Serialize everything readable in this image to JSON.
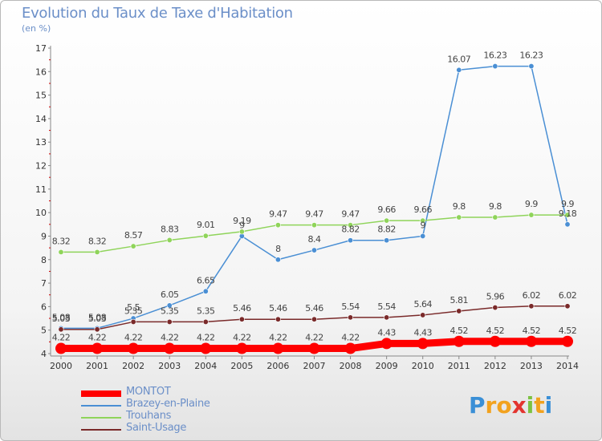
{
  "title": "Evolution du Taux de Taxe d'Habitation",
  "subtitle": "(en %)",
  "logo": {
    "text": "Proxiti",
    "letters": [
      "P",
      "r",
      "o",
      "x",
      "i",
      "t",
      "i"
    ],
    "colors": [
      "#3a8fd6",
      "#f2a21e",
      "#f2a21e",
      "#e3342f",
      "#7cc242",
      "#f2a21e",
      "#3a8fd6"
    ]
  },
  "chart_data": {
    "type": "line",
    "title": "Evolution du Taux de Taxe d'Habitation",
    "ylabel": "(en %)",
    "xlabel": "",
    "x": [
      "2000",
      "2001",
      "2002",
      "2003",
      "2004",
      "2005",
      "2006",
      "2007",
      "2008",
      "2009",
      "2010",
      "2011",
      "2012",
      "2013",
      "2014"
    ],
    "ylim": [
      4,
      17
    ],
    "yticks": [
      "4",
      "5",
      "6",
      "7",
      "8",
      "9",
      "10",
      "11",
      "12",
      "13",
      "14",
      "15",
      "16",
      "17"
    ],
    "grid": false,
    "legend_position": "bottom-left",
    "series": [
      {
        "name": "MONTOT",
        "color": "#ff0000",
        "values": [
          4.22,
          4.22,
          4.22,
          4.22,
          4.22,
          4.22,
          4.22,
          4.22,
          4.22,
          4.43,
          4.43,
          4.52,
          4.52,
          4.52,
          4.52
        ],
        "labels": [
          "4.22",
          "4.22",
          "4.22",
          "4.22",
          "4.22",
          "4.22",
          "4.22",
          "4.22",
          "4.22",
          "4.43",
          "4.43",
          "4.52",
          "4.52",
          "4.52",
          "4.52"
        ]
      },
      {
        "name": "Brazey-en-Plaine",
        "color": "#4a8fd4",
        "values": [
          5.08,
          5.08,
          5.5,
          6.05,
          6.65,
          9.0,
          8.0,
          8.4,
          8.82,
          8.82,
          9.0,
          16.07,
          16.23,
          16.23,
          9.5
        ],
        "labels": [
          "5.08",
          "5.08",
          "5.5",
          "6.05",
          "6.65",
          "9",
          "8",
          "8.4",
          "8.82",
          "8.82",
          "9",
          "16.07",
          "16.23",
          "16.23",
          ""
        ]
      },
      {
        "name": "Trouhans",
        "color": "#8fd45a",
        "values": [
          8.32,
          8.32,
          8.57,
          8.83,
          9.01,
          9.19,
          9.47,
          9.47,
          9.47,
          9.66,
          9.66,
          9.8,
          9.8,
          9.9,
          9.9
        ],
        "labels": [
          "8.32",
          "8.32",
          "8.57",
          "8.83",
          "9.01",
          "9.19",
          "9.47",
          "9.47",
          "9.47",
          "9.66",
          "9.66",
          "9.8",
          "9.8",
          "9.9",
          "9.9"
        ]
      },
      {
        "name": "Saint-Usage",
        "color": "#7a2a2a",
        "values": [
          5.03,
          5.03,
          5.35,
          5.35,
          5.35,
          5.46,
          5.46,
          5.46,
          5.54,
          5.54,
          5.64,
          5.81,
          5.96,
          6.02,
          6.02
        ],
        "labels": [
          "5.03",
          "5.03",
          "5.35",
          "5.35",
          "5.35",
          "5.46",
          "5.46",
          "5.46",
          "5.54",
          "5.54",
          "5.64",
          "5.81",
          "5.96",
          "6.02",
          "6.02"
        ]
      }
    ],
    "extra_labels": [
      "9.18"
    ]
  }
}
